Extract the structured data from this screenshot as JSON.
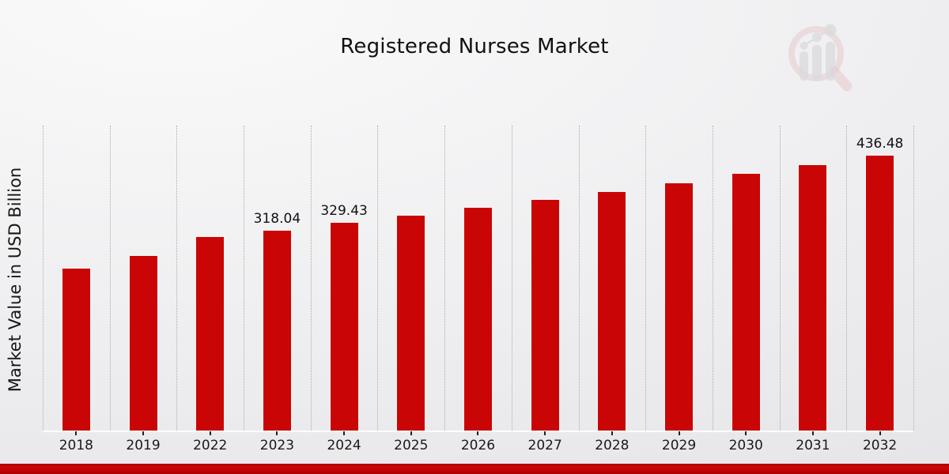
{
  "title": "Registered Nurses Market",
  "y_axis_label": "Market Value in USD Billion",
  "logo": {
    "name": "magnifier-bar-chart-logo"
  },
  "colors": {
    "bar": "#c90505",
    "bar_border": "#f2f2f2",
    "banner_red": "#c40404",
    "gridline": "#ababab",
    "tick": "#222222",
    "text": "#111111"
  },
  "chart_data": {
    "type": "bar",
    "title": "Registered Nurses Market",
    "xlabel": "",
    "ylabel": "Market Value in USD Billion",
    "categories": [
      "2018",
      "2019",
      "2022",
      "2023",
      "2024",
      "2025",
      "2026",
      "2027",
      "2028",
      "2029",
      "2030",
      "2031",
      "2032"
    ],
    "values": [
      257.3,
      276.9,
      307.0,
      318.04,
      329.43,
      341.2,
      353.4,
      366.1,
      379.2,
      392.8,
      406.9,
      421.4,
      436.48
    ],
    "data_labels": {
      "2023": "318.04",
      "2024": "329.43",
      "2032": "436.48"
    },
    "ylim": [
      0,
      483
    ],
    "grid": "vertical-dotted",
    "legend": "none",
    "bar_color": "#c90505"
  }
}
